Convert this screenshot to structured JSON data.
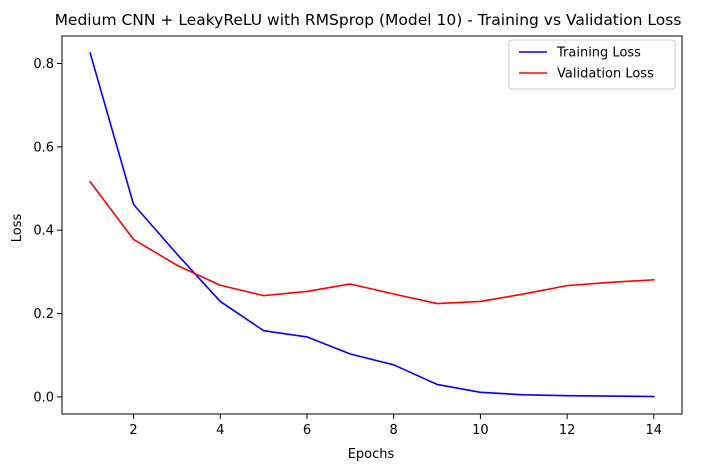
{
  "chart_data": {
    "type": "line",
    "title": "Medium CNN + LeakyReLU with RMSprop (Model 10) - Training vs Validation Loss",
    "xlabel": "Epochs",
    "ylabel": "Loss",
    "x": [
      1,
      2,
      3,
      4,
      5,
      6,
      7,
      8,
      9,
      10,
      11,
      12,
      13,
      14
    ],
    "xlim": [
      0.35,
      14.65
    ],
    "ylim": [
      -0.041,
      0.866
    ],
    "xticks": [
      2,
      4,
      6,
      8,
      10,
      12,
      14
    ],
    "yticks": [
      0.0,
      0.2,
      0.4,
      0.6,
      0.8
    ],
    "ytick_labels": [
      "0.0",
      "0.2",
      "0.4",
      "0.6",
      "0.8"
    ],
    "grid": false,
    "legend_position": "top-right",
    "series": [
      {
        "name": "Training Loss",
        "color": "#0000ff",
        "values": [
          0.825,
          0.462,
          0.343,
          0.229,
          0.159,
          0.144,
          0.103,
          0.077,
          0.03,
          0.011,
          0.005,
          0.003,
          0.002,
          0.001
        ]
      },
      {
        "name": "Validation Loss",
        "color": "#ff0000",
        "values": [
          0.516,
          0.378,
          0.316,
          0.268,
          0.243,
          0.253,
          0.271,
          0.247,
          0.224,
          0.229,
          0.247,
          0.267,
          0.275,
          0.281
        ]
      }
    ]
  }
}
